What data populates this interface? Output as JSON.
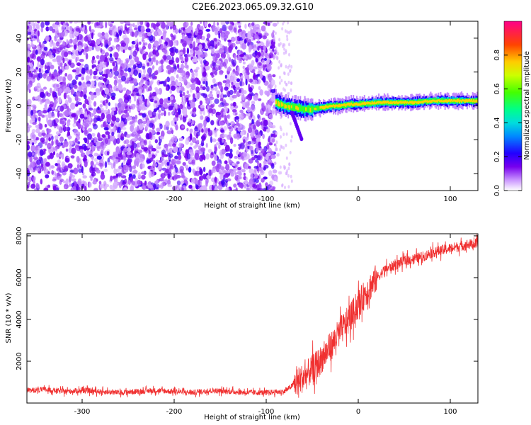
{
  "figure": {
    "title": "C2E6.2023.065.09.32.G10"
  },
  "chart_data": [
    {
      "type": "heatmap",
      "xlabel": "Height of straight line (km)",
      "ylabel": "Frequency (Hz)",
      "xlim": [
        -360,
        130
      ],
      "ylim": [
        -50,
        50
      ],
      "x_ticks": [
        -300,
        -200,
        -100,
        0,
        100
      ],
      "y_ticks": [
        -40,
        -20,
        0,
        20,
        40
      ],
      "colorbar": {
        "label": "Normalized spectral amplitude",
        "range": [
          0,
          1
        ],
        "ticks": [
          0.0,
          0.2,
          0.4,
          0.6,
          0.8
        ]
      },
      "noise_region": {
        "x_range": [
          -360,
          -90
        ],
        "description_of_signal": "broadband noise"
      },
      "signal_track": {
        "x": [
          -90,
          -80,
          -70,
          -60,
          -50,
          -40,
          -30,
          -20,
          -10,
          0,
          20,
          40,
          60,
          80,
          100,
          120,
          130
        ],
        "y": [
          2,
          0,
          -1,
          -2,
          -2,
          -1,
          0,
          0,
          1,
          1,
          2,
          2,
          2,
          3,
          3,
          3,
          3
        ]
      }
    },
    {
      "type": "line",
      "xlabel": "Height of straight line (km)",
      "ylabel": "SNR (10 * v/v)",
      "xlim": [
        -360,
        130
      ],
      "ylim": [
        0,
        8100
      ],
      "x_ticks": [
        -300,
        -200,
        -100,
        0,
        100
      ],
      "y_ticks": [
        2000,
        4000,
        6000,
        8000
      ],
      "series": [
        {
          "color": "#f03030",
          "x": [
            -360,
            -340,
            -320,
            -300,
            -280,
            -260,
            -240,
            -220,
            -200,
            -180,
            -160,
            -140,
            -120,
            -100,
            -80,
            -70,
            -60,
            -50,
            -40,
            -30,
            -20,
            -10,
            0,
            10,
            20,
            30,
            40,
            50,
            60,
            70,
            80,
            90,
            100,
            110,
            120,
            130
          ],
          "y": [
            600,
            650,
            550,
            600,
            550,
            500,
            550,
            600,
            550,
            500,
            600,
            550,
            500,
            500,
            550,
            900,
            1200,
            1600,
            2100,
            2700,
            3400,
            4000,
            4700,
            5400,
            6000,
            6400,
            6600,
            6800,
            6900,
            7000,
            7200,
            7300,
            7400,
            7500,
            7600,
            7600
          ]
        }
      ]
    }
  ]
}
